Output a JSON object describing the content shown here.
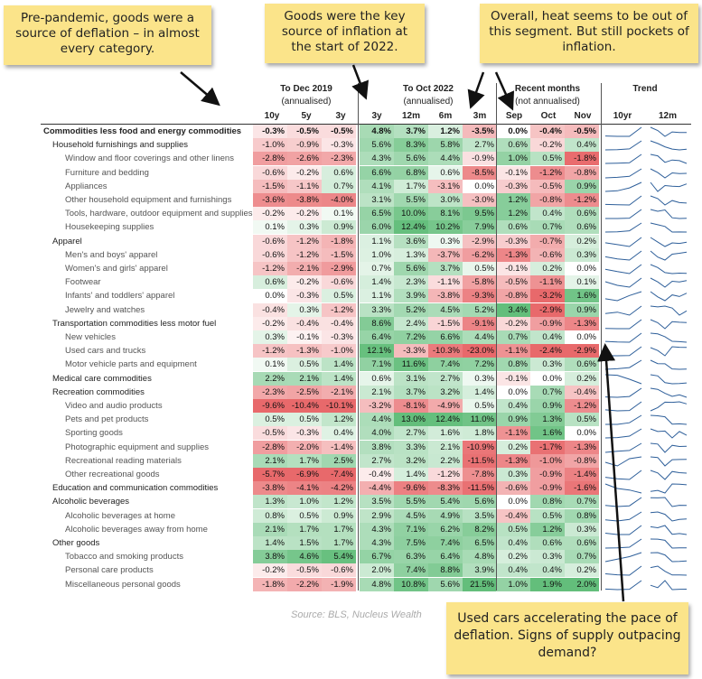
{
  "chart_data": {
    "type": "table",
    "title": "",
    "group_headers": [
      {
        "label": "To Dec 2019",
        "sub": "(annualised)"
      },
      {
        "label": "To Oct 2022",
        "sub": "(annualised)"
      },
      {
        "label": "Recent months",
        "sub": "(not annualised)"
      },
      {
        "label": "Trend",
        "sub": ""
      }
    ],
    "columns": [
      "10y",
      "5y",
      "3y",
      "3y",
      "12m",
      "6m",
      "3m",
      "Sep",
      "Oct",
      "Nov",
      "10yr",
      "12m"
    ],
    "rows": [
      {
        "label": "Commodities less food and energy commodities",
        "level": 0,
        "values": [
          "-0.3%",
          "-0.5%",
          "-0.5%",
          "4.8%",
          "3.7%",
          "1.2%",
          "-3.5%",
          "0.0%",
          "-0.4%",
          "-0.5%"
        ]
      },
      {
        "label": "Household furnishings and supplies",
        "level": 1,
        "values": [
          "-1.0%",
          "-0.9%",
          "-0.3%",
          "5.6%",
          "8.3%",
          "5.8%",
          "2.7%",
          "0.6%",
          "-0.2%",
          "0.4%"
        ]
      },
      {
        "label": "Window and floor coverings and other linens",
        "level": 2,
        "values": [
          "-2.8%",
          "-2.6%",
          "-2.3%",
          "4.3%",
          "5.6%",
          "4.4%",
          "-0.9%",
          "1.0%",
          "0.5%",
          "-1.8%"
        ]
      },
      {
        "label": "Furniture and bedding",
        "level": 2,
        "values": [
          "-0.6%",
          "-0.2%",
          "0.6%",
          "6.6%",
          "6.8%",
          "0.6%",
          "-8.5%",
          "-0.1%",
          "-1.2%",
          "-0.8%"
        ]
      },
      {
        "label": "Appliances",
        "level": 2,
        "values": [
          "-1.5%",
          "-1.1%",
          "0.7%",
          "4.1%",
          "1.7%",
          "-3.1%",
          "0.0%",
          "-0.3%",
          "-0.5%",
          "0.9%"
        ]
      },
      {
        "label": "Other household equipment and furnishings",
        "level": 2,
        "values": [
          "-3.6%",
          "-3.8%",
          "-4.0%",
          "3.1%",
          "5.5%",
          "3.0%",
          "-3.0%",
          "1.2%",
          "-0.8%",
          "-1.2%"
        ]
      },
      {
        "label": "Tools, hardware, outdoor equipment and supplies",
        "level": 2,
        "values": [
          "-0.2%",
          "-0.2%",
          "0.1%",
          "6.5%",
          "10.0%",
          "8.1%",
          "9.5%",
          "1.2%",
          "0.4%",
          "0.6%"
        ]
      },
      {
        "label": "Housekeeping supplies",
        "level": 2,
        "values": [
          "0.1%",
          "0.3%",
          "0.9%",
          "6.0%",
          "12.4%",
          "10.2%",
          "7.9%",
          "0.6%",
          "0.7%",
          "0.6%"
        ]
      },
      {
        "label": "Apparel",
        "level": 1,
        "values": [
          "-0.6%",
          "-1.2%",
          "-1.8%",
          "1.1%",
          "3.6%",
          "0.3%",
          "-2.9%",
          "-0.3%",
          "-0.7%",
          "0.2%"
        ]
      },
      {
        "label": "Men's and boys' apparel",
        "level": 2,
        "values": [
          "-0.6%",
          "-1.2%",
          "-1.5%",
          "1.0%",
          "1.3%",
          "-3.7%",
          "-6.2%",
          "-1.3%",
          "-0.6%",
          "0.3%"
        ]
      },
      {
        "label": "Women's and girls' apparel",
        "level": 2,
        "values": [
          "-1.2%",
          "-2.1%",
          "-2.9%",
          "0.7%",
          "5.6%",
          "3.7%",
          "0.5%",
          "-0.1%",
          "0.2%",
          "0.0%"
        ]
      },
      {
        "label": "Footwear",
        "level": 2,
        "values": [
          "0.6%",
          "-0.2%",
          "-0.6%",
          "1.4%",
          "2.3%",
          "-1.1%",
          "-5.8%",
          "-0.5%",
          "-1.1%",
          "0.1%"
        ]
      },
      {
        "label": "Infants' and toddlers' apparel",
        "level": 2,
        "values": [
          "0.0%",
          "-0.3%",
          "0.5%",
          "1.1%",
          "3.9%",
          "-3.8%",
          "-9.3%",
          "-0.8%",
          "-3.2%",
          "1.6%"
        ]
      },
      {
        "label": "Jewelry and watches",
        "level": 2,
        "values": [
          "-0.4%",
          "0.3%",
          "-1.2%",
          "3.3%",
          "5.2%",
          "4.5%",
          "5.2%",
          "3.4%",
          "-2.9%",
          "0.9%"
        ]
      },
      {
        "label": "Transportation commodities less motor fuel",
        "level": 1,
        "values": [
          "-0.2%",
          "-0.4%",
          "-0.4%",
          "8.6%",
          "2.4%",
          "-1.5%",
          "-9.1%",
          "-0.2%",
          "-0.9%",
          "-1.3%"
        ]
      },
      {
        "label": "New vehicles",
        "level": 2,
        "values": [
          "0.3%",
          "-0.1%",
          "-0.3%",
          "6.4%",
          "7.2%",
          "6.6%",
          "4.4%",
          "0.7%",
          "0.4%",
          "0.0%"
        ]
      },
      {
        "label": "Used cars and trucks",
        "level": 2,
        "values": [
          "-1.2%",
          "-1.3%",
          "-1.0%",
          "12.1%",
          "-3.3%",
          "-10.3%",
          "-23.0%",
          "-1.1%",
          "-2.4%",
          "-2.9%"
        ]
      },
      {
        "label": "Motor vehicle parts and equipment",
        "level": 2,
        "values": [
          "0.1%",
          "0.5%",
          "1.4%",
          "7.1%",
          "11.6%",
          "7.4%",
          "7.2%",
          "0.8%",
          "0.3%",
          "0.6%"
        ]
      },
      {
        "label": "Medical care commodities",
        "level": 1,
        "values": [
          "2.2%",
          "2.1%",
          "1.4%",
          "0.6%",
          "3.1%",
          "2.7%",
          "0.3%",
          "-0.1%",
          "0.0%",
          "0.2%"
        ]
      },
      {
        "label": "Recreation commodities",
        "level": 1,
        "values": [
          "-2.3%",
          "-2.5%",
          "-2.1%",
          "2.1%",
          "3.7%",
          "3.2%",
          "1.4%",
          "0.0%",
          "0.7%",
          "-0.4%"
        ]
      },
      {
        "label": "Video and audio products",
        "level": 2,
        "values": [
          "-9.6%",
          "-10.4%",
          "-10.1%",
          "-3.2%",
          "-8.1%",
          "-4.9%",
          "0.5%",
          "0.4%",
          "0.9%",
          "-1.2%"
        ]
      },
      {
        "label": "Pets and pet products",
        "level": 2,
        "values": [
          "0.5%",
          "0.5%",
          "1.2%",
          "4.4%",
          "13.0%",
          "12.4%",
          "11.0%",
          "0.9%",
          "1.3%",
          "0.5%"
        ]
      },
      {
        "label": "Sporting goods",
        "level": 2,
        "values": [
          "-0.5%",
          "-0.3%",
          "0.4%",
          "4.0%",
          "2.7%",
          "1.6%",
          "1.8%",
          "-1.1%",
          "1.6%",
          "0.0%"
        ]
      },
      {
        "label": "Photographic equipment and supplies",
        "level": 2,
        "values": [
          "-2.8%",
          "-2.0%",
          "-1.4%",
          "3.8%",
          "3.3%",
          "2.1%",
          "-10.9%",
          "0.2%",
          "-1.7%",
          "-1.3%"
        ]
      },
      {
        "label": "Recreational reading materials",
        "level": 2,
        "values": [
          "2.1%",
          "1.7%",
          "2.5%",
          "2.7%",
          "3.2%",
          "2.2%",
          "-11.5%",
          "-1.3%",
          "-1.0%",
          "-0.8%"
        ]
      },
      {
        "label": "Other recreational goods",
        "level": 2,
        "values": [
          "-5.7%",
          "-6.9%",
          "-7.4%",
          "-0.4%",
          "1.4%",
          "-1.2%",
          "-7.8%",
          "0.3%",
          "-0.9%",
          "-1.4%"
        ]
      },
      {
        "label": "Education and communication commodities",
        "level": 1,
        "values": [
          "-3.8%",
          "-4.1%",
          "-4.2%",
          "-4.4%",
          "-9.6%",
          "-8.3%",
          "-11.5%",
          "-0.6%",
          "-0.9%",
          "-1.6%"
        ]
      },
      {
        "label": "Alcoholic beverages",
        "level": 1,
        "values": [
          "1.3%",
          "1.0%",
          "1.2%",
          "3.5%",
          "5.5%",
          "5.4%",
          "5.6%",
          "0.0%",
          "0.8%",
          "0.7%"
        ]
      },
      {
        "label": "Alcoholic beverages at home",
        "level": 2,
        "values": [
          "0.8%",
          "0.5%",
          "0.9%",
          "2.9%",
          "4.5%",
          "4.9%",
          "3.5%",
          "-0.4%",
          "0.5%",
          "0.8%"
        ]
      },
      {
        "label": "Alcoholic beverages away from home",
        "level": 2,
        "values": [
          "2.1%",
          "1.7%",
          "1.7%",
          "4.3%",
          "7.1%",
          "6.2%",
          "8.2%",
          "0.5%",
          "1.2%",
          "0.3%"
        ]
      },
      {
        "label": "Other goods",
        "level": 1,
        "values": [
          "1.4%",
          "1.5%",
          "1.7%",
          "4.3%",
          "7.5%",
          "7.4%",
          "6.5%",
          "0.4%",
          "0.6%",
          "0.6%"
        ]
      },
      {
        "label": "Tobacco and smoking products",
        "level": 2,
        "values": [
          "3.8%",
          "4.6%",
          "5.4%",
          "6.7%",
          "6.3%",
          "6.4%",
          "4.8%",
          "0.2%",
          "0.3%",
          "0.7%"
        ]
      },
      {
        "label": "Personal care products",
        "level": 2,
        "values": [
          "-0.2%",
          "-0.5%",
          "-0.6%",
          "2.0%",
          "7.4%",
          "8.8%",
          "3.9%",
          "0.4%",
          "0.4%",
          "0.2%"
        ]
      },
      {
        "label": "Miscellaneous personal goods",
        "level": 2,
        "values": [
          "-1.8%",
          "-2.2%",
          "-1.9%",
          "4.8%",
          "10.8%",
          "5.6%",
          "21.5%",
          "1.0%",
          "1.9%",
          "2.0%"
        ]
      }
    ],
    "source": "Source: BLS, Nucleus Wealth"
  },
  "annotations": [
    "Pre-pandemic, goods were a source of deflation – in almost every category.",
    "Goods were the key source of inflation at the start of 2022.",
    "Overall, heat seems to be out of this segment. But still pockets of inflation.",
    "Used cars accelerating the pace of deflation. Signs of supply outpacing demand?"
  ],
  "colors": {
    "negative": "#e8696b",
    "positive": "#63be7b",
    "neutral": "#ffffff",
    "note": "#fbe48a",
    "sparkline": "#2e5f9a"
  }
}
